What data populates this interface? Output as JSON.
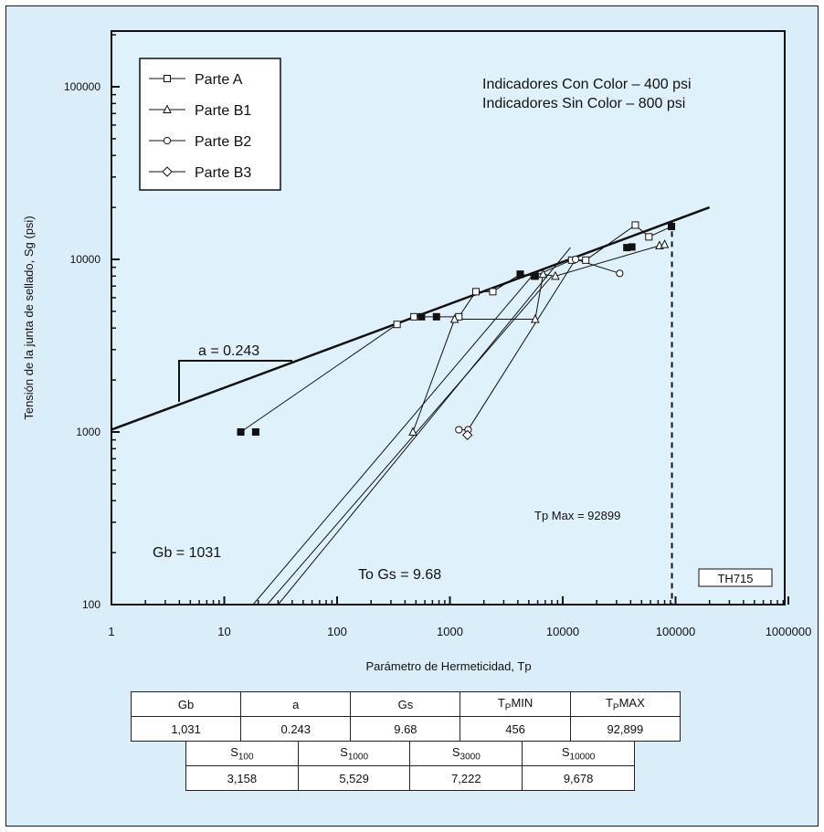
{
  "chart_data": {
    "type": "scatter",
    "xlabel": "Parámetro de Hermeticidad, Tp",
    "ylabel": "Tensión de la junta de sellado, Sg (psi)",
    "x_scale": "log",
    "y_scale": "log",
    "xlim": [
      1,
      1000000
    ],
    "ylim": [
      100,
      200000
    ],
    "x_ticks": [
      "1",
      "10",
      "100",
      "1000",
      "10000",
      "100000",
      "1000000"
    ],
    "y_ticks": [
      "100",
      "1000",
      "10000",
      "100000"
    ],
    "grid": false,
    "legend_position": "top-left",
    "legend": [
      {
        "name": "Parte A",
        "marker": "square"
      },
      {
        "name": "Parte B1",
        "marker": "triangle"
      },
      {
        "name": "Parte B2",
        "marker": "circle"
      },
      {
        "name": "Parte B3",
        "marker": "diamond"
      }
    ],
    "annotations": {
      "info_line1": "Indicadores Con Color – 400 psi",
      "info_line2": "Indicadores Sin Color – 800 psi",
      "slope": "a = 0.243",
      "tpmax": "Tp Max = 92899",
      "gb": "Gb = 1031",
      "gs": "To Gs = 9.68",
      "tag": "TH715"
    },
    "fit_line": {
      "Gb": 1031,
      "a": 0.243,
      "x_range": [
        1,
        200000
      ]
    },
    "tpmax_x": 92899,
    "series": [
      {
        "name": "Parte A",
        "marker": "square",
        "points": [
          [
            14,
            1000
          ],
          [
            340,
            4200
          ],
          [
            480,
            4650
          ],
          [
            1200,
            4650
          ],
          [
            1700,
            6500
          ],
          [
            2400,
            6500
          ],
          [
            4200,
            8200
          ],
          [
            5600,
            8000
          ],
          [
            12000,
            9900
          ],
          [
            16000,
            9900
          ],
          [
            44000,
            15800
          ],
          [
            58000,
            13500
          ],
          [
            92000,
            15500
          ]
        ]
      },
      {
        "name": "Parte B1",
        "marker": "triangle",
        "points": [
          [
            470,
            1000
          ],
          [
            1100,
            4500
          ],
          [
            5700,
            4500
          ],
          [
            6700,
            8200
          ],
          [
            8600,
            8000
          ],
          [
            72000,
            12000
          ],
          [
            80000,
            12200
          ]
        ]
      },
      {
        "name": "Parte B2",
        "marker": "circle",
        "points": [
          [
            1200,
            1030
          ],
          [
            1450,
            1030
          ],
          [
            13000,
            10000
          ],
          [
            32000,
            8300
          ]
        ]
      },
      {
        "name": "Parte B3",
        "marker": "diamond",
        "points": [
          [
            1430,
            960
          ]
        ]
      },
      {
        "name": "",
        "marker": "filled-square",
        "points": [
          [
            14,
            1000
          ],
          [
            19,
            1000
          ],
          [
            560,
            4650
          ],
          [
            760,
            4650
          ],
          [
            4200,
            8200
          ],
          [
            5700,
            8000
          ],
          [
            37000,
            11700
          ],
          [
            41000,
            11800
          ],
          [
            92000,
            15500
          ]
        ]
      }
    ]
  },
  "table1": {
    "headers": [
      {
        "text": "Gb",
        "sub": "",
        "suffix": ""
      },
      {
        "text": "a",
        "sub": "",
        "suffix": ""
      },
      {
        "text": "Gs",
        "sub": "",
        "suffix": ""
      },
      {
        "text": "T",
        "sub": "P",
        "suffix": "MIN"
      },
      {
        "text": "T",
        "sub": "P",
        "suffix": "MAX"
      }
    ],
    "values": [
      "1,031",
      "0.243",
      "9.68",
      "456",
      "92,899"
    ]
  },
  "table2": {
    "headers": [
      {
        "text": "S",
        "sub": "100",
        "suffix": ""
      },
      {
        "text": "S",
        "sub": "1000",
        "suffix": ""
      },
      {
        "text": "S",
        "sub": "3000",
        "suffix": ""
      },
      {
        "text": "S",
        "sub": "10000",
        "suffix": ""
      }
    ],
    "values": [
      "3,158",
      "5,529",
      "7,222",
      "9,678"
    ]
  }
}
